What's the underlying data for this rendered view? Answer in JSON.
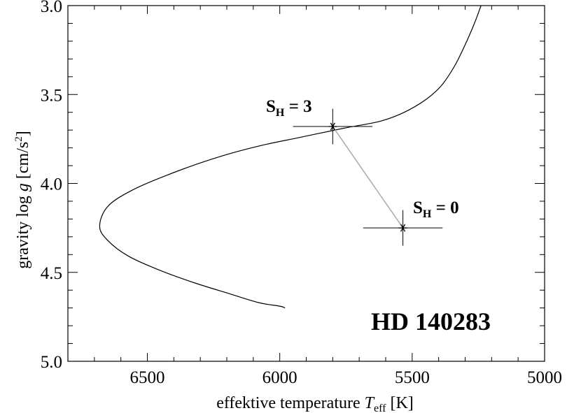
{
  "chart_data": {
    "type": "line",
    "xlabel": {
      "prefix": "effektive temperature ",
      "symbol": "T",
      "subscript": "eff",
      "unit": "  [K]"
    },
    "ylabel": {
      "prefix": "gravity log ",
      "symbol": "g",
      "unit_main": "  [cm/s",
      "unit_sup": "2",
      "unit_close": "]"
    },
    "xlim": [
      6800,
      5000
    ],
    "ylim": [
      3.0,
      5.0
    ],
    "y_inverted": true,
    "x_ticks": [
      6500,
      6000,
      5500,
      5000
    ],
    "x_tick_labels": [
      "6500",
      "6000",
      "5500",
      "5000"
    ],
    "y_ticks": [
      3.0,
      3.5,
      4.0,
      4.5,
      5.0
    ],
    "y_tick_labels": [
      "3.0",
      "3.5",
      "4.0",
      "4.5",
      "5.0"
    ],
    "x_minor_step": 100,
    "y_minor_step": 0.1,
    "grid": false,
    "series": [
      {
        "kind": "curve",
        "color": "#000000",
        "points": [
          [
            5240,
            3.0
          ],
          [
            5265,
            3.1
          ],
          [
            5300,
            3.22
          ],
          [
            5340,
            3.34
          ],
          [
            5390,
            3.45
          ],
          [
            5450,
            3.53
          ],
          [
            5530,
            3.6
          ],
          [
            5620,
            3.65
          ],
          [
            5760,
            3.69
          ],
          [
            5920,
            3.74
          ],
          [
            6080,
            3.79
          ],
          [
            6250,
            3.86
          ],
          [
            6420,
            3.95
          ],
          [
            6560,
            4.04
          ],
          [
            6650,
            4.13
          ],
          [
            6680,
            4.24
          ],
          [
            6650,
            4.32
          ],
          [
            6570,
            4.41
          ],
          [
            6450,
            4.49
          ],
          [
            6320,
            4.56
          ],
          [
            6190,
            4.62
          ],
          [
            6080,
            4.67
          ],
          [
            6000,
            4.69
          ],
          [
            5980,
            4.7
          ]
        ]
      },
      {
        "kind": "connector",
        "color": "#aaaaaa",
        "points": [
          [
            5800,
            3.68
          ],
          [
            5535,
            4.25
          ]
        ]
      }
    ],
    "markers": [
      {
        "label": "S",
        "sub": "H",
        "eq": " = 3",
        "x": 5800,
        "y": 3.68,
        "xerr": 150,
        "yerr": 0.1
      },
      {
        "label": "S",
        "sub": "H",
        "eq": " = 0",
        "x": 5535,
        "y": 4.25,
        "xerr": 150,
        "yerr": 0.1
      }
    ],
    "annotations": [
      {
        "text": "HD 140283"
      }
    ]
  }
}
